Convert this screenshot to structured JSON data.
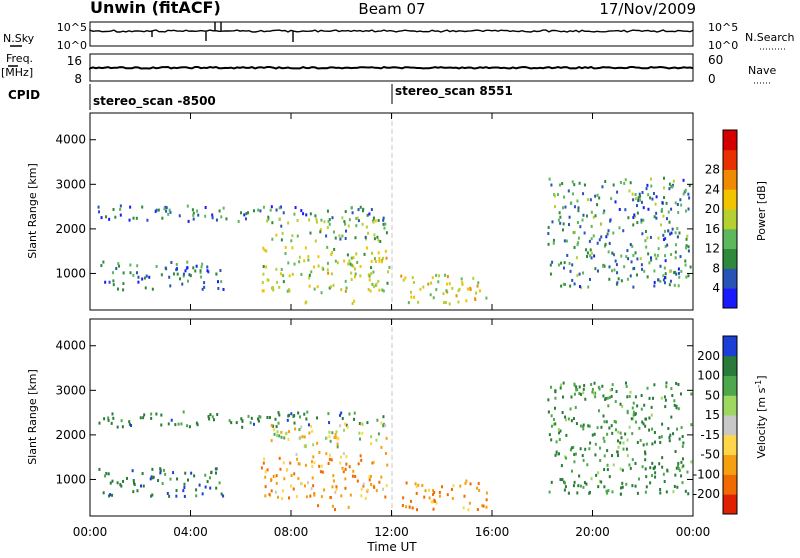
{
  "header": {
    "station": "Unwin (fitACF)",
    "beam": "Beam 07",
    "date": "17/Nov/2009"
  },
  "strip_labels": {
    "nsky": "N.Sky",
    "nsearch": "N.Search",
    "freq": "Freq.",
    "freq_unit": "[MHz]",
    "nave": "Nave",
    "cpid": "CPID",
    "nsky_ticks": [
      "10^5",
      "10^0"
    ],
    "nsearch_ticks": [
      "10^5",
      "10^0"
    ],
    "freq_ticks": [
      "16",
      "8"
    ],
    "nave_ticks": [
      "60",
      "0"
    ]
  },
  "cpid": {
    "segments": [
      {
        "label": "stereo_scan -8500",
        "start_hour": 0
      },
      {
        "label": "stereo_scan 8551",
        "start_hour": 12
      }
    ]
  },
  "chart_data": [
    {
      "type": "heatmap",
      "quantity": "Power",
      "ylabel": "Slant Range [km]",
      "xlabel": "Time UT",
      "x_ticks": [
        "00:00",
        "04:00",
        "08:00",
        "12:00",
        "16:00",
        "20:00",
        "00:00"
      ],
      "x_range_hours": [
        0,
        24
      ],
      "ylim": [
        180,
        4600
      ],
      "y_ticks": [
        1000,
        2000,
        3000,
        4000
      ],
      "colorbar": {
        "label": "Power [dB]",
        "ticks": [
          4,
          8,
          12,
          16,
          20,
          24,
          28
        ],
        "colors": [
          "#1a1aff",
          "#2a53b8",
          "#2e8a3a",
          "#5cb85a",
          "#b6d030",
          "#f2c400",
          "#f08a00",
          "#e83000",
          "#d40000"
        ]
      },
      "echo_regions": [
        {
          "t": [
            0.3,
            11.7
          ],
          "r": [
            2200,
            2550
          ],
          "level": 8
        },
        {
          "t": [
            7.0,
            11.9
          ],
          "r": [
            1750,
            2300
          ],
          "level": 14
        },
        {
          "t": [
            0.3,
            5.3
          ],
          "r": [
            650,
            1300
          ],
          "level": 9
        },
        {
          "t": [
            6.8,
            11.9
          ],
          "r": [
            600,
            1650
          ],
          "level": 18
        },
        {
          "t": [
            8.5,
            10.5
          ],
          "r": [
            350,
            450
          ],
          "level": 22
        },
        {
          "t": [
            12.3,
            15.8
          ],
          "r": [
            350,
            1000
          ],
          "level": 19
        },
        {
          "t": [
            18.2,
            23.9
          ],
          "r": [
            700,
            3200
          ],
          "level": 10
        }
      ]
    },
    {
      "type": "heatmap",
      "quantity": "Velocity",
      "ylabel": "Slant Range [km]",
      "xlabel": "Time UT",
      "x_ticks": [
        "00:00",
        "04:00",
        "08:00",
        "12:00",
        "16:00",
        "20:00",
        "00:00"
      ],
      "x_range_hours": [
        0,
        24
      ],
      "ylim": [
        180,
        4600
      ],
      "y_ticks": [
        1000,
        2000,
        3000,
        4000
      ],
      "colorbar": {
        "label": "Velocity [m s",
        "label_sup": "-1",
        "label_end": "]",
        "ticks": [
          200,
          100,
          50,
          15,
          -15,
          -50,
          -100,
          -200
        ],
        "colors": [
          "#1c3fd8",
          "#2a7a3a",
          "#4ca84a",
          "#9ed860",
          "#c8c8c8",
          "#ffd64a",
          "#f5a010",
          "#f06a00",
          "#e02000"
        ]
      },
      "echo_regions": [
        {
          "t": [
            0.3,
            11.7
          ],
          "r": [
            2200,
            2550
          ],
          "level": 100
        },
        {
          "t": [
            7.0,
            11.9
          ],
          "r": [
            1750,
            2300
          ],
          "level": 0
        },
        {
          "t": [
            0.3,
            5.3
          ],
          "r": [
            650,
            1300
          ],
          "level": 120
        },
        {
          "t": [
            6.8,
            11.9
          ],
          "r": [
            600,
            1650
          ],
          "level": -60
        },
        {
          "t": [
            8.5,
            10.5
          ],
          "r": [
            350,
            450
          ],
          "level": -80
        },
        {
          "t": [
            12.3,
            15.8
          ],
          "r": [
            350,
            1000
          ],
          "level": -70
        },
        {
          "t": [
            18.2,
            23.9
          ],
          "r": [
            700,
            3200
          ],
          "level": 80
        }
      ]
    }
  ]
}
